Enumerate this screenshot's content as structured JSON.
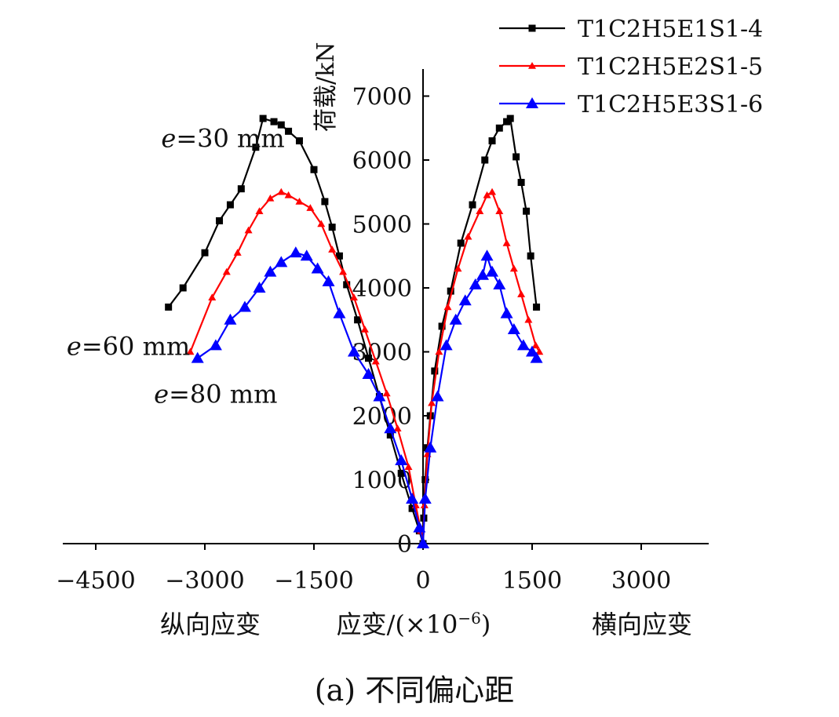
{
  "chart_data": {
    "type": "line",
    "title": "",
    "caption": "(a) 不同偏心距",
    "xlabel": "应变/(×10⁻⁶)",
    "xlabel_left": "纵向应变",
    "xlabel_right": "横向应变",
    "ylabel": "荷载/kN",
    "xlim": [
      -4900,
      3900
    ],
    "ylim": [
      0,
      7500
    ],
    "xticks": [
      -4500,
      -3000,
      -1500,
      0,
      1500,
      3000
    ],
    "xtick_labels": [
      "−4500",
      "−3000",
      "−1500",
      "0",
      "1500",
      "3000"
    ],
    "yticks": [
      0,
      1000,
      2000,
      3000,
      4000,
      5000,
      6000,
      7000
    ],
    "ytick_labels": [
      "0",
      "1000",
      "2000",
      "3000",
      "4000",
      "5000",
      "6000",
      "7000"
    ],
    "grid": false,
    "legend_position": "top-right",
    "annotations": [
      {
        "text": "e=30 mm",
        "x": -3600,
        "y": 6200
      },
      {
        "text": "e=60 mm",
        "x": -4900,
        "y": 2950
      },
      {
        "text": "e=80 mm",
        "x": -3700,
        "y": 2200
      }
    ],
    "series": [
      {
        "name": "T1C2H5E1S1-4",
        "color": "#000000",
        "marker": "square",
        "longitudinal": {
          "x": [
            -3500,
            -3300,
            -3000,
            -2800,
            -2650,
            -2500,
            -2300,
            -2200,
            -2050,
            -1950,
            -1850,
            -1700,
            -1500,
            -1350,
            -1250,
            -1150,
            -1050,
            -900,
            -750,
            -600,
            -450,
            -300,
            -150,
            -50,
            0
          ],
          "y": [
            3700,
            4000,
            4550,
            5050,
            5300,
            5550,
            6200,
            6650,
            6600,
            6550,
            6450,
            6300,
            5850,
            5350,
            4950,
            4500,
            4050,
            3500,
            2900,
            2300,
            1700,
            1100,
            550,
            200,
            0
          ]
        },
        "transverse": {
          "x": [
            0,
            10,
            30,
            60,
            100,
            160,
            260,
            380,
            520,
            680,
            850,
            950,
            1050,
            1150,
            1200,
            1280,
            1350,
            1420,
            1480,
            1560
          ],
          "y": [
            0,
            400,
            1000,
            1500,
            2000,
            2700,
            3400,
            3950,
            4700,
            5300,
            6000,
            6300,
            6500,
            6600,
            6650,
            6050,
            5650,
            5200,
            4500,
            3700
          ]
        }
      },
      {
        "name": "T1C2H5E2S1-5",
        "color": "#ff0000",
        "marker": "triangle-small",
        "longitudinal": {
          "x": [
            -3200,
            -2900,
            -2700,
            -2550,
            -2400,
            -2250,
            -2100,
            -1950,
            -1850,
            -1700,
            -1550,
            -1400,
            -1250,
            -1100,
            -950,
            -800,
            -650,
            -500,
            -350,
            -200,
            -100,
            -30,
            0
          ],
          "y": [
            3000,
            3850,
            4250,
            4550,
            4900,
            5200,
            5400,
            5500,
            5450,
            5350,
            5250,
            5000,
            4600,
            4250,
            3850,
            3350,
            2850,
            2350,
            1800,
            1200,
            600,
            200,
            0
          ]
        },
        "transverse": {
          "x": [
            0,
            20,
            60,
            120,
            220,
            340,
            480,
            620,
            780,
            880,
            950,
            1050,
            1150,
            1250,
            1350,
            1450,
            1550,
            1600
          ],
          "y": [
            0,
            600,
            1400,
            2200,
            3000,
            3700,
            4300,
            4800,
            5200,
            5450,
            5500,
            5200,
            4700,
            4300,
            3900,
            3500,
            3100,
            3000
          ]
        }
      },
      {
        "name": "T1C2H5E3S1-6",
        "color": "#0000ff",
        "marker": "triangle",
        "longitudinal": {
          "x": [
            -3100,
            -2850,
            -2650,
            -2450,
            -2250,
            -2100,
            -1950,
            -1750,
            -1600,
            -1450,
            -1300,
            -1150,
            -950,
            -750,
            -600,
            -450,
            -300,
            -150,
            -50,
            0
          ],
          "y": [
            2900,
            3100,
            3500,
            3700,
            4000,
            4250,
            4400,
            4550,
            4500,
            4300,
            4100,
            3600,
            3000,
            2650,
            2300,
            1800,
            1300,
            700,
            250,
            0
          ]
        },
        "transverse": {
          "x": [
            0,
            30,
            100,
            200,
            320,
            450,
            580,
            720,
            820,
            880,
            950,
            1050,
            1150,
            1250,
            1380,
            1500,
            1560
          ],
          "y": [
            0,
            700,
            1500,
            2300,
            3100,
            3500,
            3800,
            4050,
            4200,
            4500,
            4250,
            4050,
            3600,
            3350,
            3100,
            3000,
            2900
          ]
        }
      }
    ]
  }
}
